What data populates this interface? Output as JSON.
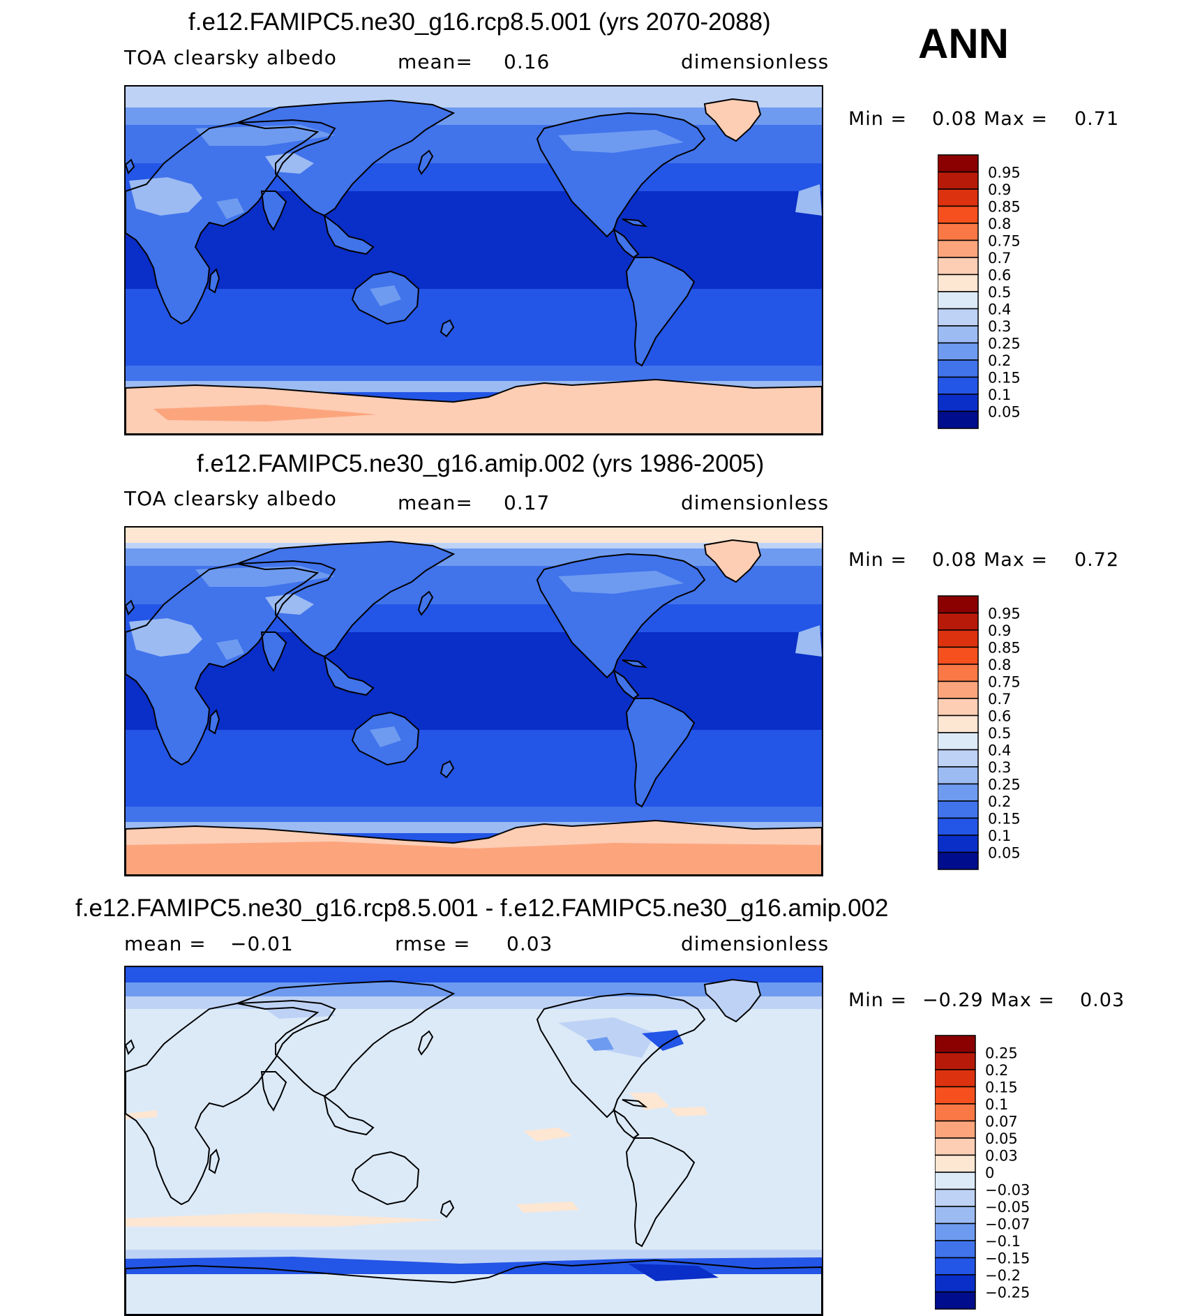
{
  "season": "ANN",
  "panels": [
    {
      "title": "f.e12.FAMIPC5.ne30_g16.rcp8.5.001 (yrs 2070-2088)",
      "left_label": "TOA clearsky albedo",
      "mid_label": "mean=",
      "mid_value": "0.16",
      "units": "dimensionless",
      "min_label": "Min =",
      "min_value": "0.08",
      "max_label": "Max =",
      "max_value": "0.71",
      "levels": [
        "0.95",
        "0.9",
        "0.85",
        "0.8",
        "0.75",
        "0.7",
        "0.6",
        "0.5",
        "0.4",
        "0.3",
        "0.25",
        "0.2",
        "0.15",
        "0.1",
        "0.05"
      ]
    },
    {
      "title": "f.e12.FAMIPC5.ne30_g16.amip.002 (yrs 1986-2005)",
      "left_label": "TOA clearsky albedo",
      "mid_label": "mean=",
      "mid_value": "0.17",
      "units": "dimensionless",
      "min_label": "Min =",
      "min_value": "0.08",
      "max_label": "Max =",
      "max_value": "0.72",
      "levels": [
        "0.95",
        "0.9",
        "0.85",
        "0.8",
        "0.75",
        "0.7",
        "0.6",
        "0.5",
        "0.4",
        "0.3",
        "0.25",
        "0.2",
        "0.15",
        "0.1",
        "0.05"
      ]
    },
    {
      "title": "f.e12.FAMIPC5.ne30_g16.rcp8.5.001 - f.e12.FAMIPC5.ne30_g16.amip.002",
      "left_label": "mean =",
      "left_value": "−0.01",
      "mid_label": "rmse =",
      "mid_value": "0.03",
      "units": "dimensionless",
      "min_label": "Min =",
      "min_value": "−0.29",
      "max_label": "Max =",
      "max_value": "0.03",
      "levels": [
        "0.25",
        "0.2",
        "0.15",
        "0.1",
        "0.07",
        "0.05",
        "0.03",
        "0",
        "−0.03",
        "−0.05",
        "−0.07",
        "−0.1",
        "−0.15",
        "−0.2",
        "−0.25"
      ]
    }
  ],
  "colorbar_colors": [
    "#8b0000",
    "#b81a0a",
    "#dc3210",
    "#f5501e",
    "#fa7846",
    "#fca57d",
    "#fdcdb4",
    "#fde6d2",
    "#dceaf8",
    "#bed2f5",
    "#9bbbf2",
    "#6e9bf0",
    "#4173eb",
    "#2355e6",
    "#0a2ec8",
    "#000d8c"
  ],
  "map_colors": {
    "deep_ocean": "#0a2ec8",
    "ocean": "#2355e6",
    "mid_ocean": "#4173eb",
    "land_dark": "#4173eb",
    "land_light": "#6e9bf0",
    "land_pale": "#9bbbf2",
    "polar_pale": "#bed2f5",
    "ice": "#fdcdb4",
    "ice_strong": "#fca57d",
    "diff_bg": "#dceaf8",
    "diff_pos": "#fde6d2",
    "diff_neg1": "#bed2f5",
    "diff_neg2": "#6e9bf0",
    "diff_neg3": "#2355e6",
    "diff_neg4": "#0a2ec8",
    "coast": "#000000"
  }
}
